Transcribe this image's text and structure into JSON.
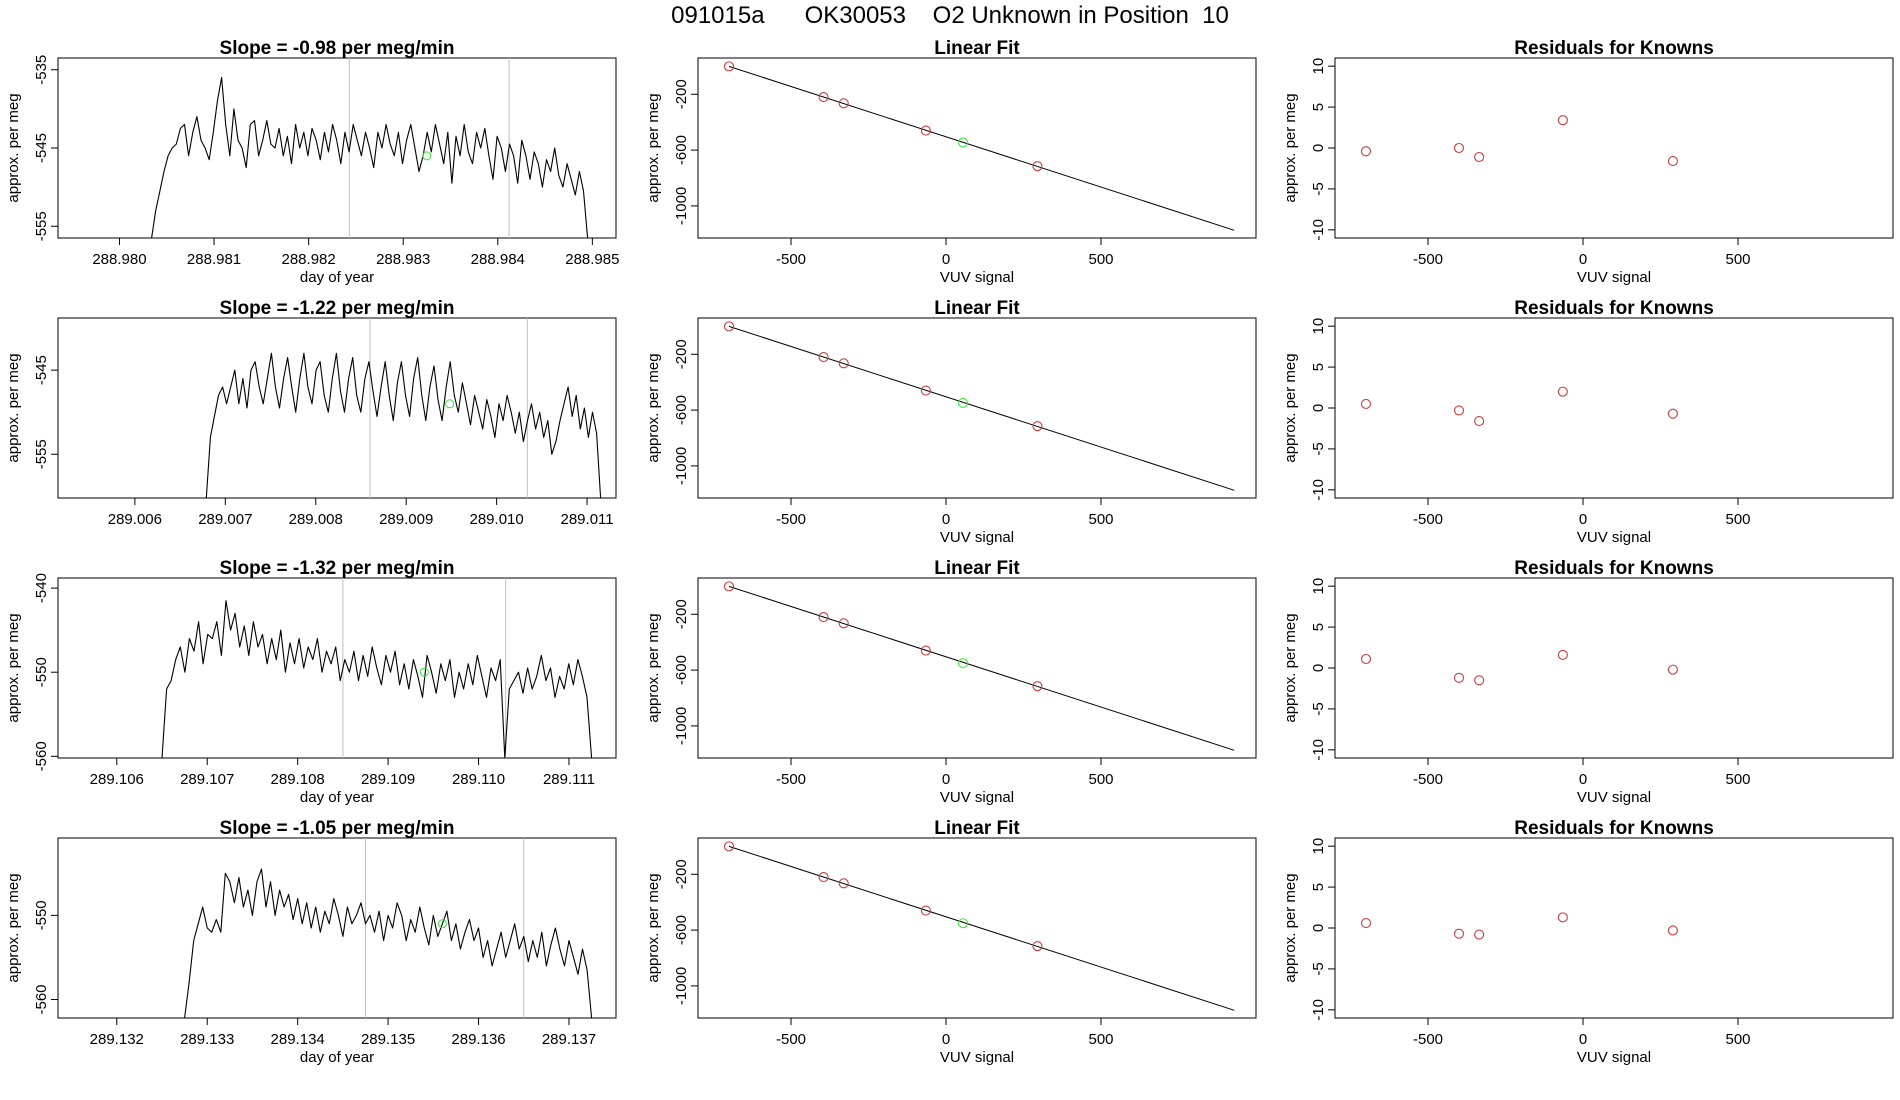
{
  "header": {
    "title": "091015a      OK30053    O2 Unknown in Position  10"
  },
  "colors": {
    "trace": "#000000",
    "known_point": "#cd3b3b",
    "unknown_point": "#39e839",
    "marker_line": "#bfbfbf",
    "fit_line": "#000000"
  },
  "chart_data": [
    {
      "type": "line",
      "title": "Slope =  -0.98  per meg/min",
      "xlabel": "day of year",
      "ylabel": "approx. per meg",
      "xlim": [
        288.97935,
        288.98525
      ],
      "ylim": [
        -556.5,
        -533.5
      ],
      "xticks": [
        "288.980",
        "288.981",
        "288.982",
        "288.983",
        "288.984",
        "288.985"
      ],
      "yticks": [
        "-535",
        "-545",
        "-555"
      ],
      "vlines": [
        288.98243,
        288.98412
      ],
      "start": 288.98034,
      "end": 288.98495,
      "base": -556.5,
      "yrange": [
        -550,
        -536
      ],
      "values": [
        -556.5,
        -553,
        -550.5,
        -548,
        -546,
        -545,
        -544.5,
        -542.5,
        -542,
        -546,
        -543,
        -541,
        -544,
        -545,
        -546.5,
        -543,
        -539,
        -536,
        -542,
        -546,
        -540,
        -544,
        -545,
        -547.5,
        -542,
        -541.5,
        -546,
        -544,
        -541.5,
        -544.5,
        -545,
        -542.5,
        -546,
        -543.5,
        -547,
        -542,
        -545,
        -543,
        -546,
        -542.5,
        -544,
        -546.5,
        -543,
        -545.5,
        -542,
        -544,
        -547,
        -543,
        -545.5,
        -542,
        -544,
        -546,
        -543,
        -545,
        -547.5,
        -543,
        -545,
        -542,
        -544.5,
        -546,
        -543,
        -547,
        -544,
        -542,
        -545,
        -548,
        -546,
        -543,
        -545.5,
        -542,
        -544.5,
        -547,
        -543,
        -549.5,
        -543.5,
        -546,
        -542,
        -545.5,
        -547,
        -543,
        -545,
        -542.5,
        -546,
        -549,
        -543.5,
        -545,
        -548,
        -544.5,
        -546,
        -549.5,
        -544,
        -546,
        -549,
        -545.5,
        -547,
        -550,
        -546.5,
        -548,
        -545,
        -548.5,
        -550,
        -547,
        -549,
        -551,
        -548,
        -550.5,
        -556.5
      ],
      "unknown": {
        "x": 288.98325,
        "y": -546
      }
    },
    {
      "type": "scatter",
      "title": "Linear Fit",
      "xlabel": "VUV signal",
      "ylabel": "approx. per meg",
      "xlim": [
        -800,
        1000
      ],
      "ylim": [
        -1230,
        60
      ],
      "xticks": [
        "-500",
        "0",
        "500"
      ],
      "yticks": [
        "-200",
        "-600",
        "-1000"
      ],
      "line": {
        "x1": -700,
        "y1": 0,
        "x2": 930,
        "y2": -1175
      },
      "knowns": [
        {
          "x": -700,
          "y": 0
        },
        {
          "x": -395,
          "y": -220
        },
        {
          "x": -330,
          "y": -265
        },
        {
          "x": -65,
          "y": -460
        },
        {
          "x": 295,
          "y": -715
        }
      ],
      "unknown": {
        "x": 55,
        "y": -546
      }
    },
    {
      "type": "scatter",
      "title": "Residuals for Knowns",
      "xlabel": "VUV signal",
      "ylabel": "approx. per meg",
      "xlim": [
        -800,
        1000
      ],
      "ylim": [
        -11,
        11
      ],
      "xticks": [
        "-500",
        "0",
        "500"
      ],
      "yticks": [
        "10",
        "5",
        "0",
        "-5",
        "-10"
      ],
      "knowns": [
        {
          "x": -700,
          "y": -0.4
        },
        {
          "x": -400,
          "y": 0
        },
        {
          "x": -335,
          "y": -1.1
        },
        {
          "x": -65,
          "y": 3.4
        },
        {
          "x": 290,
          "y": -1.6
        }
      ]
    },
    {
      "type": "line",
      "title": "Slope =  -1.22  per meg/min",
      "xlabel": "",
      "ylabel": "approx. per meg",
      "xlim": [
        289.00515,
        289.01132
      ],
      "ylim": [
        -560.2,
        -538.8
      ],
      "xticks": [
        "289.006",
        "289.007",
        "289.008",
        "289.009",
        "289.010",
        "289.011"
      ],
      "yticks": [
        "-545",
        "-555"
      ],
      "vlines": [
        289.0086,
        289.01034
      ],
      "start": 289.00679,
      "end": 289.01115,
      "base": -560.2,
      "yrange": [
        -555,
        -542
      ],
      "values": [
        -560.2,
        -553,
        -550.5,
        -548,
        -547,
        -549,
        -547,
        -545,
        -549,
        -546,
        -549.5,
        -545,
        -544,
        -547,
        -549,
        -546,
        -543,
        -547,
        -549.5,
        -546,
        -543.5,
        -547,
        -550,
        -546,
        -543,
        -547,
        -549,
        -545,
        -544,
        -548,
        -550,
        -546,
        -543,
        -547.5,
        -550,
        -546,
        -543.5,
        -548,
        -550,
        -546,
        -544,
        -547.5,
        -550.5,
        -547,
        -544,
        -548,
        -551,
        -546.5,
        -544,
        -548,
        -550.5,
        -546,
        -543.5,
        -548,
        -551,
        -547,
        -544.5,
        -548.5,
        -551,
        -547,
        -544,
        -548,
        -550,
        -546.5,
        -549,
        -551.5,
        -548,
        -550,
        -552,
        -548.5,
        -550.5,
        -553,
        -549,
        -551,
        -548,
        -550,
        -552.5,
        -550,
        -553.5,
        -551,
        -549,
        -552,
        -550,
        -553,
        -551,
        -555,
        -553.5,
        -551,
        -549,
        -547,
        -550.5,
        -548,
        -552,
        -549.5,
        -553,
        -550,
        -552.5,
        -560.2
      ],
      "unknown": {
        "x": 289.00948,
        "y": -549
      }
    },
    {
      "type": "scatter",
      "title": "Linear Fit",
      "xlabel": "VUV signal",
      "ylabel": "approx. per meg",
      "xlim": [
        -800,
        1000
      ],
      "ylim": [
        -1230,
        60
      ],
      "xticks": [
        "-500",
        "0",
        "500"
      ],
      "yticks": [
        "-200",
        "-600",
        "-1000"
      ],
      "line": {
        "x1": -700,
        "y1": 0,
        "x2": 930,
        "y2": -1175
      },
      "knowns": [
        {
          "x": -700,
          "y": 0
        },
        {
          "x": -395,
          "y": -220
        },
        {
          "x": -330,
          "y": -265
        },
        {
          "x": -65,
          "y": -460
        },
        {
          "x": 295,
          "y": -715
        }
      ],
      "unknown": {
        "x": 55,
        "y": -549
      }
    },
    {
      "type": "scatter",
      "title": "Residuals for Knowns",
      "xlabel": "VUV signal",
      "ylabel": "approx. per meg",
      "xlim": [
        -800,
        1000
      ],
      "ylim": [
        -11,
        11
      ],
      "xticks": [
        "-500",
        "0",
        "500"
      ],
      "yticks": [
        "10",
        "5",
        "0",
        "-5",
        "-10"
      ],
      "knowns": [
        {
          "x": -700,
          "y": 0.5
        },
        {
          "x": -400,
          "y": -0.3
        },
        {
          "x": -335,
          "y": -1.6
        },
        {
          "x": -65,
          "y": 2.0
        },
        {
          "x": 290,
          "y": -0.7
        }
      ]
    },
    {
      "type": "line",
      "title": "Slope =  -1.32  per meg/min",
      "xlabel": "day of year",
      "ylabel": "approx. per meg",
      "xlim": [
        289.10535,
        289.11152
      ],
      "ylim": [
        -560.2,
        -538.8
      ],
      "xticks": [
        "289.106",
        "289.107",
        "289.108",
        "289.109",
        "289.110",
        "289.111"
      ],
      "yticks": [
        "-540",
        "-550",
        "-560"
      ],
      "vlines": [
        289.1085,
        289.1103
      ],
      "start": 289.1065,
      "end": 289.11125,
      "base": -560.2,
      "yrange": [
        -553,
        -541
      ],
      "values": [
        -560.2,
        -552,
        -551,
        -548.5,
        -547,
        -550,
        -546,
        -547.5,
        -544,
        -549,
        -545.5,
        -546,
        -544,
        -548,
        -541.5,
        -545,
        -543,
        -547,
        -544.5,
        -548,
        -544,
        -547,
        -545.5,
        -549,
        -546,
        -548.5,
        -545,
        -550,
        -546.5,
        -549,
        -546,
        -549.5,
        -547,
        -548.5,
        -546,
        -550,
        -547.5,
        -549,
        -547,
        -551,
        -548.5,
        -550,
        -547.5,
        -551,
        -548,
        -550.5,
        -547,
        -549.5,
        -551.5,
        -548,
        -550,
        -547.5,
        -551.5,
        -549,
        -552,
        -548.5,
        -550.5,
        -553,
        -548,
        -550,
        -552.5,
        -549,
        -551,
        -548.5,
        -553,
        -550,
        -552,
        -549,
        -551.5,
        -548,
        -550.5,
        -553,
        -549.5,
        -551,
        -548.5,
        -560.2,
        -552,
        -551,
        -550,
        -552.5,
        -549.5,
        -552,
        -550.5,
        -548,
        -551,
        -549.5,
        -553,
        -550.5,
        -552,
        -549,
        -551.5,
        -548.5,
        -550.5,
        -553,
        -560.2
      ],
      "unknown": {
        "x": 289.1094,
        "y": -550
      }
    },
    {
      "type": "scatter",
      "title": "Linear Fit",
      "xlabel": "VUV signal",
      "ylabel": "approx. per meg",
      "xlim": [
        -800,
        1000
      ],
      "ylim": [
        -1230,
        60
      ],
      "xticks": [
        "-500",
        "0",
        "500"
      ],
      "yticks": [
        "-200",
        "-600",
        "-1000"
      ],
      "line": {
        "x1": -700,
        "y1": 0,
        "x2": 930,
        "y2": -1175
      },
      "knowns": [
        {
          "x": -700,
          "y": 0
        },
        {
          "x": -395,
          "y": -220
        },
        {
          "x": -330,
          "y": -265
        },
        {
          "x": -65,
          "y": -460
        },
        {
          "x": 295,
          "y": -715
        }
      ],
      "unknown": {
        "x": 55,
        "y": -550
      }
    },
    {
      "type": "scatter",
      "title": "Residuals for Knowns",
      "xlabel": "VUV signal",
      "ylabel": "approx. per meg",
      "xlim": [
        -800,
        1000
      ],
      "ylim": [
        -11,
        11
      ],
      "xticks": [
        "-500",
        "0",
        "500"
      ],
      "yticks": [
        "10",
        "5",
        "0",
        "-5",
        "-10"
      ],
      "knowns": [
        {
          "x": -700,
          "y": 1.1
        },
        {
          "x": -400,
          "y": -1.2
        },
        {
          "x": -335,
          "y": -1.5
        },
        {
          "x": -65,
          "y": 1.6
        },
        {
          "x": 290,
          "y": -0.2
        }
      ]
    },
    {
      "type": "line",
      "title": "Slope =  -1.05  per meg/min",
      "xlabel": "day of year",
      "ylabel": "approx. per meg",
      "xlim": [
        289.13135,
        289.13752
      ],
      "ylim": [
        -562.2,
        -540.8
      ],
      "xticks": [
        "289.132",
        "289.133",
        "289.134",
        "289.135",
        "289.136",
        "289.137"
      ],
      "yticks": [
        "-550",
        "-560"
      ],
      "vlines": [
        289.13475,
        289.1365
      ],
      "start": 289.13275,
      "end": 289.13725,
      "base": -562.2,
      "yrange": [
        -557,
        -544
      ],
      "values": [
        -562.2,
        -558,
        -553,
        -551,
        -549,
        -551.5,
        -552,
        -550.5,
        -552,
        -545,
        -546,
        -548.5,
        -545.5,
        -549,
        -547,
        -550,
        -546,
        -544.5,
        -549,
        -546,
        -550,
        -547,
        -549,
        -547.5,
        -550.5,
        -548,
        -551,
        -548.5,
        -551.5,
        -549,
        -552,
        -549.5,
        -551,
        -548,
        -550,
        -552.5,
        -549,
        -551,
        -550,
        -548.5,
        -551,
        -550,
        -552,
        -549.5,
        -553,
        -550,
        -551.5,
        -548.5,
        -550,
        -553,
        -550.5,
        -552,
        -549,
        -551.5,
        -553.5,
        -550,
        -552.5,
        -551,
        -549.5,
        -553,
        -551,
        -554,
        -552,
        -550.5,
        -553,
        -551.5,
        -555,
        -553,
        -556,
        -554,
        -552,
        -555,
        -553,
        -551,
        -554,
        -552.5,
        -555.5,
        -553,
        -555,
        -552,
        -556,
        -553.5,
        -551.5,
        -554,
        -556,
        -553,
        -555,
        -557,
        -554,
        -556.5,
        -562.2
      ],
      "unknown": {
        "x": 289.1356,
        "y": -551
      }
    },
    {
      "type": "scatter",
      "title": "Linear Fit",
      "xlabel": "VUV signal",
      "ylabel": "approx. per meg",
      "xlim": [
        -800,
        1000
      ],
      "ylim": [
        -1230,
        60
      ],
      "xticks": [
        "-500",
        "0",
        "500"
      ],
      "yticks": [
        "-200",
        "-600",
        "-1000"
      ],
      "line": {
        "x1": -700,
        "y1": 0,
        "x2": 930,
        "y2": -1175
      },
      "knowns": [
        {
          "x": -700,
          "y": 0
        },
        {
          "x": -395,
          "y": -220
        },
        {
          "x": -330,
          "y": -265
        },
        {
          "x": -65,
          "y": -460
        },
        {
          "x": 295,
          "y": -715
        }
      ],
      "unknown": {
        "x": 55,
        "y": -551
      }
    },
    {
      "type": "scatter",
      "title": "Residuals for Knowns",
      "xlabel": "VUV signal",
      "ylabel": "approx. per meg",
      "xlim": [
        -800,
        1000
      ],
      "ylim": [
        -11,
        11
      ],
      "xticks": [
        "-500",
        "0",
        "500"
      ],
      "yticks": [
        "10",
        "5",
        "0",
        "-5",
        "-10"
      ],
      "knowns": [
        {
          "x": -700,
          "y": 0.6
        },
        {
          "x": -400,
          "y": -0.7
        },
        {
          "x": -335,
          "y": -0.8
        },
        {
          "x": -65,
          "y": 1.3
        },
        {
          "x": 290,
          "y": -0.3
        }
      ]
    }
  ]
}
